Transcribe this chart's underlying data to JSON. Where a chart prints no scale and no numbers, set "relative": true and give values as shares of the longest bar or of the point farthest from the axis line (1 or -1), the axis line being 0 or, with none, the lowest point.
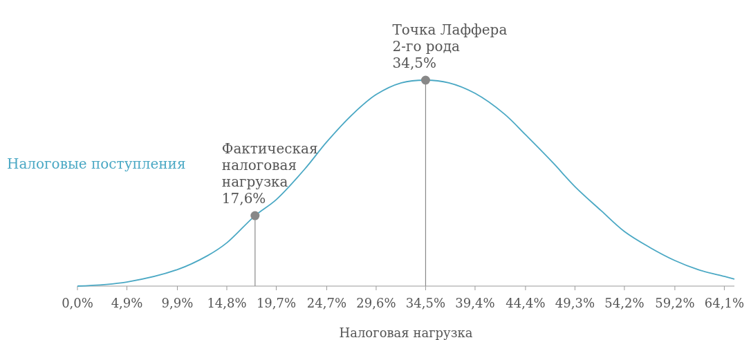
{
  "chart_data": {
    "type": "line",
    "relative": true,
    "xlabel": "Налоговая нагрузка",
    "legend": "left",
    "xlim": [
      0,
      65.1
    ],
    "xticks": [
      {
        "value": 0,
        "label": "0,0%"
      },
      {
        "value": 4.9,
        "label": "4,9%"
      },
      {
        "value": 9.9,
        "label": "9,9%"
      },
      {
        "value": 14.8,
        "label": "14,8%"
      },
      {
        "value": 19.7,
        "label": "19,7%"
      },
      {
        "value": 24.7,
        "label": "24,7%"
      },
      {
        "value": 29.6,
        "label": "29,6%"
      },
      {
        "value": 34.5,
        "label": "34,5%"
      },
      {
        "value": 39.4,
        "label": "39,4%"
      },
      {
        "value": 44.4,
        "label": "44,4%"
      },
      {
        "value": 49.3,
        "label": "49,3%"
      },
      {
        "value": 54.2,
        "label": "54,2%"
      },
      {
        "value": 59.2,
        "label": "59,2%"
      },
      {
        "value": 64.1,
        "label": "64,1%"
      }
    ],
    "series": [
      {
        "name": "Налоговые поступления",
        "color": "#4aa8c4",
        "x": [
          0,
          4.9,
          9.9,
          12.9,
          14.8,
          17.6,
          19.7,
          22.5,
          24.7,
          27.3,
          29.6,
          32.1,
          34.5,
          36.8,
          39.4,
          42.3,
          44.4,
          47.1,
          49.3,
          51.9,
          54.2,
          56.7,
          59.2,
          61.5,
          64.1,
          65.1
        ],
        "values": [
          0,
          0.02,
          0.08,
          0.148,
          0.21,
          0.342,
          0.42,
          0.567,
          0.7,
          0.836,
          0.93,
          0.987,
          1,
          0.987,
          0.936,
          0.836,
          0.735,
          0.6,
          0.483,
          0.366,
          0.265,
          0.188,
          0.124,
          0.08,
          0.047,
          0.034
        ]
      },
      {
        "type": "scatter",
        "color": "#888888",
        "x": [
          17.6,
          34.5
        ],
        "values": [
          0.342,
          1
        ]
      }
    ],
    "annotations": [
      {
        "text": "Фактическая\nналоговая\nнагрузка\n17,6%",
        "x": 17.6,
        "y": 0.342
      },
      {
        "text": "Точка Лаффера\n2-го рода\n34,5%",
        "x": 34.5,
        "y": 1
      }
    ]
  }
}
